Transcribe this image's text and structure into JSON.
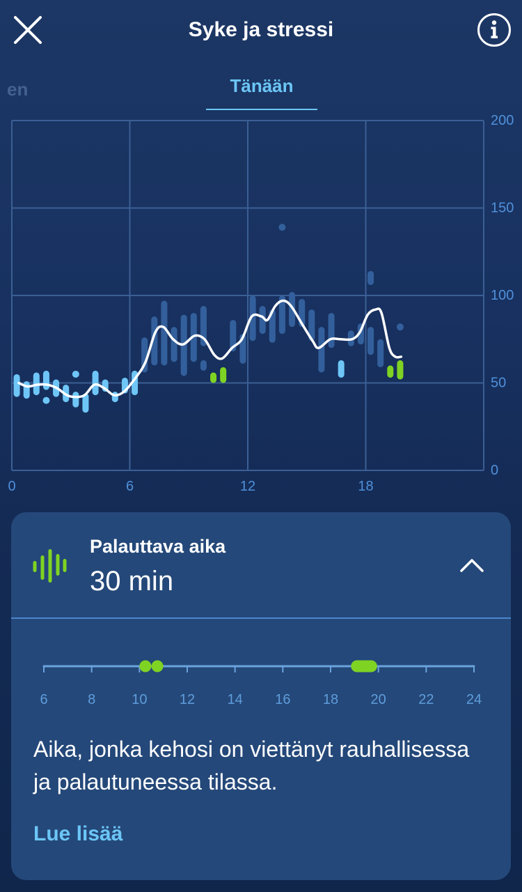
{
  "header": {
    "title": "Syke ja stressi",
    "close_icon": "close-icon",
    "info_icon": "info-icon"
  },
  "tabs": [
    {
      "label": "en",
      "active": false
    },
    {
      "label": "Tänään",
      "active": true
    }
  ],
  "colors": {
    "accent": "#6cc6f6",
    "recovery": "#7fd323",
    "card_background": "#244879",
    "grid": "#3b5f95",
    "axis_text": "#5090da",
    "timeline": "#6aa3dd",
    "timeline_text": "#5f9ddb"
  },
  "chart_data": {
    "type": "bar",
    "xlim": [
      0,
      24
    ],
    "ylim": [
      0,
      200
    ],
    "x_ticks": [
      0,
      6,
      12,
      18
    ],
    "y_ticks": [
      0,
      50,
      100,
      150,
      200
    ],
    "y_axis_position": "right",
    "grid": true,
    "series": [
      {
        "type": "range_bar",
        "color": "#33609c",
        "bars": [
          [
            6.75,
            56,
            76
          ],
          [
            7.25,
            60,
            88
          ],
          [
            7.75,
            60,
            97
          ],
          [
            8.25,
            62,
            82
          ],
          [
            8.75,
            54,
            89
          ],
          [
            9.25,
            62,
            90
          ],
          [
            9.75,
            71,
            94
          ],
          [
            9.75,
            57,
            63
          ],
          [
            11.25,
            68,
            86
          ],
          [
            11.75,
            61,
            78
          ],
          [
            12.25,
            74,
            100
          ],
          [
            12.75,
            78,
            94
          ],
          [
            13.25,
            73,
            92
          ],
          [
            13.75,
            78,
            100
          ],
          [
            14.25,
            82,
            102
          ],
          [
            14.75,
            82,
            98
          ],
          [
            15.25,
            74,
            92
          ],
          [
            15.75,
            56,
            82
          ],
          [
            16.25,
            70,
            90
          ],
          [
            17.25,
            71,
            80
          ],
          [
            17.75,
            72,
            84
          ],
          [
            18.25,
            66,
            82
          ],
          [
            18.25,
            106,
            114
          ],
          [
            18.75,
            59,
            75
          ]
        ]
      },
      {
        "type": "range_bar",
        "color": "#6ec6f7",
        "bars": [
          [
            0.25,
            42,
            55
          ],
          [
            0.75,
            41,
            51
          ],
          [
            1.25,
            43,
            56
          ],
          [
            1.75,
            46,
            57
          ],
          [
            2.25,
            42,
            52
          ],
          [
            2.75,
            39,
            49
          ],
          [
            3.25,
            36,
            45
          ],
          [
            3.75,
            33,
            44
          ],
          [
            4.25,
            43,
            57
          ],
          [
            4.75,
            45,
            52
          ],
          [
            5.25,
            39,
            45
          ],
          [
            5.75,
            44,
            53
          ],
          [
            6.25,
            43,
            57
          ],
          [
            16.75,
            53,
            63
          ]
        ]
      },
      {
        "type": "range_bar",
        "color": "#7fd323",
        "bars": [
          [
            10.25,
            50,
            56
          ],
          [
            10.75,
            50,
            59
          ],
          [
            19.25,
            53,
            60
          ],
          [
            19.75,
            52,
            63
          ]
        ]
      },
      {
        "type": "scatter",
        "color": "#6ec6f7",
        "points": [
          [
            1.75,
            40
          ],
          [
            3.25,
            55
          ]
        ]
      },
      {
        "type": "scatter",
        "color": "#33609c",
        "points": [
          [
            13.75,
            139
          ],
          [
            19.75,
            82
          ]
        ]
      },
      {
        "type": "line",
        "color": "#ffffff",
        "points": [
          [
            0.35,
            50
          ],
          [
            0.8,
            48
          ],
          [
            1.3,
            49
          ],
          [
            1.8,
            49
          ],
          [
            2.3,
            47
          ],
          [
            2.8,
            43
          ],
          [
            3.2,
            42
          ],
          [
            3.7,
            43
          ],
          [
            4.2,
            49
          ],
          [
            4.7,
            47
          ],
          [
            5.2,
            43
          ],
          [
            5.7,
            45
          ],
          [
            6.3,
            53
          ],
          [
            6.8,
            62
          ],
          [
            7.3,
            79
          ],
          [
            7.7,
            82
          ],
          [
            8.2,
            75
          ],
          [
            8.7,
            72
          ],
          [
            9.3,
            77
          ],
          [
            9.8,
            75
          ],
          [
            10.3,
            66
          ],
          [
            10.7,
            64
          ],
          [
            11.2,
            70
          ],
          [
            11.7,
            75
          ],
          [
            12.2,
            88
          ],
          [
            12.7,
            88
          ],
          [
            13.0,
            86
          ],
          [
            13.4,
            94
          ],
          [
            13.8,
            97
          ],
          [
            14.2,
            94
          ],
          [
            14.8,
            83
          ],
          [
            15.3,
            74
          ],
          [
            15.6,
            70
          ],
          [
            16.2,
            75
          ],
          [
            16.7,
            75
          ],
          [
            17.3,
            75
          ],
          [
            17.7,
            79
          ],
          [
            18.1,
            89
          ],
          [
            18.5,
            92
          ],
          [
            18.8,
            90
          ],
          [
            19.2,
            70
          ],
          [
            19.5,
            65
          ],
          [
            19.8,
            65
          ]
        ]
      }
    ]
  },
  "recovery_card": {
    "icon": "recovery-wave-icon",
    "title": "Palauttava aika",
    "value": "30 min",
    "toggle_icon": "chevron-up-icon",
    "timeline": {
      "range": [
        6,
        24
      ],
      "ticks": [
        6,
        8,
        10,
        12,
        14,
        16,
        18,
        20,
        22,
        24
      ],
      "periods": [
        {
          "from": 10.25,
          "to": 10.25
        },
        {
          "from": 10.75,
          "to": 10.75
        },
        {
          "from": 19.1,
          "to": 19.7
        }
      ]
    },
    "description": "Aika, jonka kehosi on viettänyt rauhallisessa ja palautuneessa tilassa.",
    "link": "Lue lisää"
  }
}
